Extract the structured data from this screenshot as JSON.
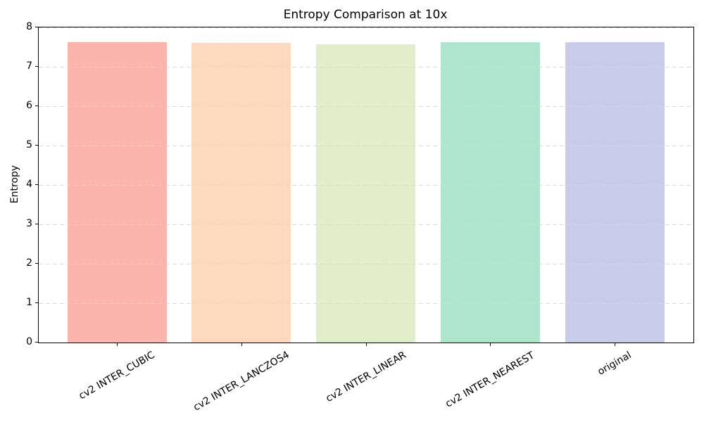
{
  "chart_data": {
    "type": "bar",
    "title": "Entropy Comparison at 10x",
    "xlabel": "",
    "ylabel": "Entropy",
    "categories": [
      "cv2 INTER_CUBIC",
      "cv2 INTER_LANCZOS4",
      "cv2 INTER_LINEAR",
      "cv2 INTER_NEAREST",
      "original"
    ],
    "values": [
      7.62,
      7.61,
      7.57,
      7.63,
      7.62
    ],
    "bar_colors": [
      "#fcb4ad",
      "#fed9bd",
      "#e2edca",
      "#b0e5cd",
      "#c8cce8"
    ],
    "ylim": [
      0,
      8
    ],
    "yticks": [
      0,
      1,
      2,
      3,
      4,
      5,
      6,
      7,
      8
    ],
    "grid": "horizontal-dashed",
    "grid_color": "#d9d9d9",
    "legend_position": "none",
    "background_color": "#ffffff",
    "xtick_rotation_deg": 30
  }
}
